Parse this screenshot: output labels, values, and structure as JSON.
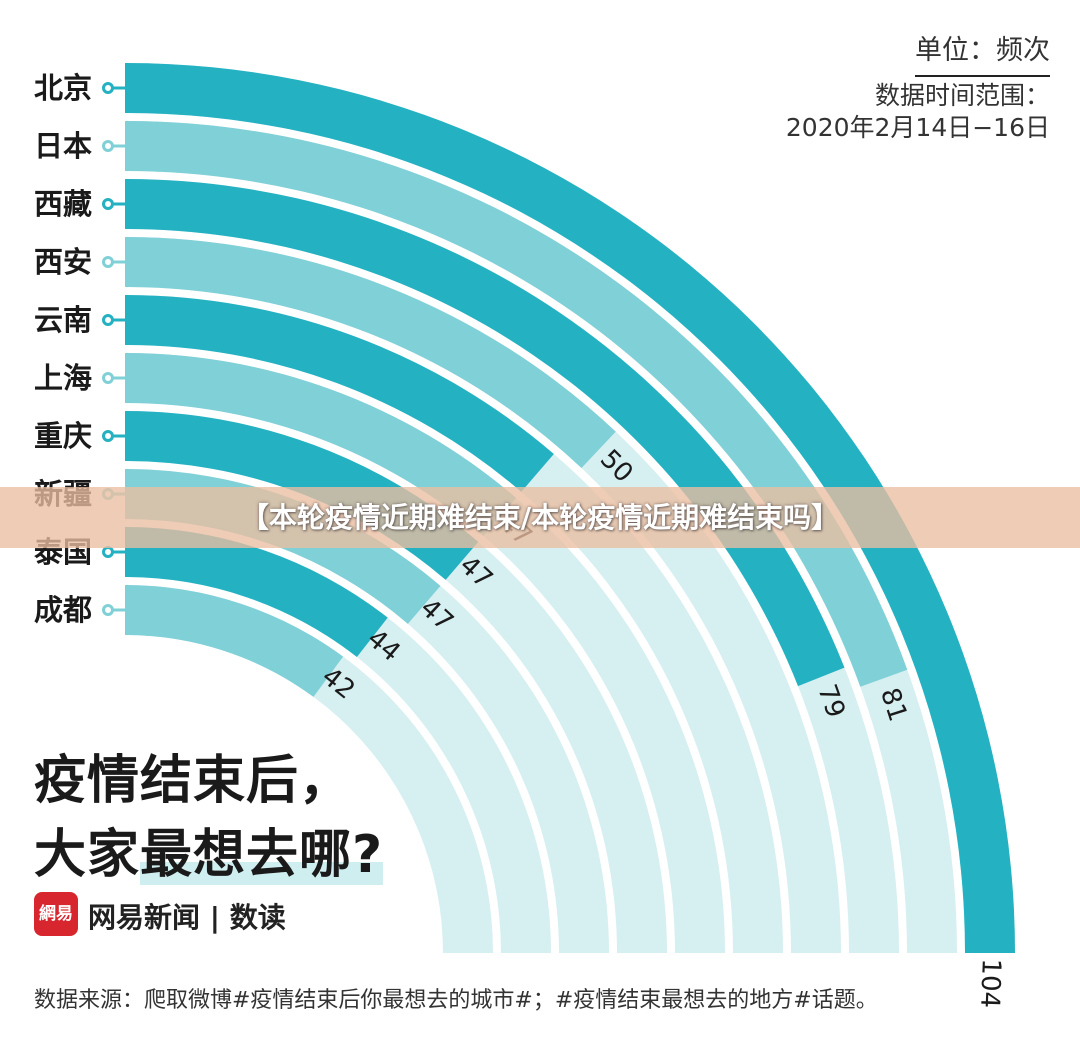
{
  "chart_data": {
    "type": "radial-bar",
    "unit_label": "单位：频次",
    "range_label": "数据时间范围：",
    "range_value": "2020年2月14日−16日",
    "categories": [
      "北京",
      "日本",
      "西藏",
      "西安",
      "云南",
      "上海",
      "重庆",
      "新疆",
      "泰国",
      "成都"
    ],
    "values": [
      104,
      81,
      79,
      50,
      47,
      47,
      47,
      47,
      44,
      42
    ],
    "value_labels": [
      "104",
      "81",
      "79",
      "50",
      "",
      "47",
      "47",
      "47",
      "44",
      "42"
    ],
    "max_value": 104,
    "colors": {
      "dark": "#24b2c2",
      "light": "#7fd0d7",
      "track": "#d6eff1"
    }
  },
  "headline": {
    "line1": "疫情结束后，",
    "line2_plain": "大家",
    "line2_highlight": "最想去哪?"
  },
  "brand": {
    "logo_text": "網易",
    "name": "网易新闻 | 数读"
  },
  "source": "数据来源：爬取微博#疫情结束后你最想去的城市#；#疫情结束最想去的地方#话题。",
  "banner": "【本轮疫情近期难结束/本轮疫情近期难结束吗】"
}
